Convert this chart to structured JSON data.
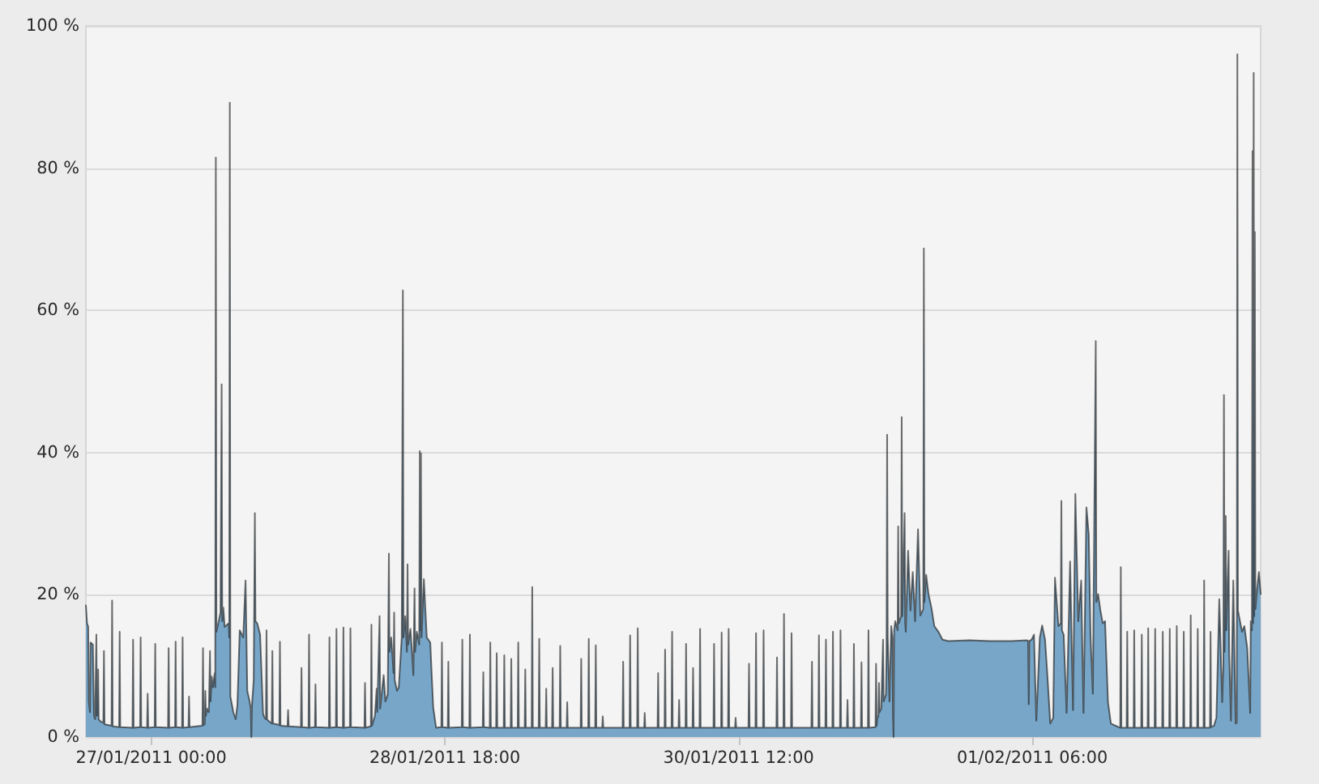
{
  "chart_data": {
    "type": "area",
    "color": "#78a6c8",
    "grid": "y",
    "xlim": [
      "2011-01-26T14:40",
      "2011-02-02T14:40"
    ],
    "xticks": [
      {
        "value": "2011-01-27T00:00",
        "label": "27/01/2011 00:00"
      },
      {
        "value": "2011-01-28T18:00",
        "label": "28/01/2011 18:00"
      },
      {
        "value": "2011-01-30T12:00",
        "label": "30/01/2011 12:00"
      },
      {
        "value": "2011-02-01T06:00",
        "label": "01/02/2011 06:00"
      }
    ],
    "ylim": [
      0,
      100
    ],
    "yticks": [
      {
        "value": 0,
        "label": "0 %"
      },
      {
        "value": 20,
        "label": "20 %"
      },
      {
        "value": 40,
        "label": "40 %"
      },
      {
        "value": 60,
        "label": "60 %"
      },
      {
        "value": 80,
        "label": "80 %"
      },
      {
        "value": 100,
        "label": "100 %"
      }
    ],
    "x": [
      "2011-01-26T14:40",
      "2011-01-26T14:50",
      "2011-01-26T15:00",
      "2011-01-26T15:05",
      "2011-01-26T15:15",
      "2011-01-26T15:20",
      "2011-01-26T15:40",
      "2011-01-26T15:50",
      "2011-01-26T16:00",
      "2011-01-26T16:10",
      "2011-01-26T16:15",
      "2011-01-26T16:25",
      "2011-01-26T16:30",
      "2011-01-26T16:45",
      "2011-01-26T17:10",
      "2011-01-26T17:15",
      "2011-01-26T17:20",
      "2011-01-26T18:20",
      "2011-01-26T18:25",
      "2011-01-26T18:30",
      "2011-01-26T19:25",
      "2011-01-26T19:30",
      "2011-01-26T19:35",
      "2011-01-26T21:20",
      "2011-01-26T21:25",
      "2011-01-26T21:30",
      "2011-01-26T22:25",
      "2011-01-26T22:30",
      "2011-01-26T22:35",
      "2011-01-26T23:25",
      "2011-01-26T23:30",
      "2011-01-26T23:35",
      "2011-01-27T00:30",
      "2011-01-27T00:35",
      "2011-01-27T00:40",
      "2011-01-27T02:25",
      "2011-01-27T02:30",
      "2011-01-27T02:35",
      "2011-01-27T03:25",
      "2011-01-27T03:30",
      "2011-01-27T03:35",
      "2011-01-27T04:25",
      "2011-01-27T04:30",
      "2011-01-27T04:35",
      "2011-01-27T05:20",
      "2011-01-27T05:25",
      "2011-01-27T05:30",
      "2011-01-27T07:20",
      "2011-01-27T07:25",
      "2011-01-27T07:30",
      "2011-01-27T07:40",
      "2011-01-27T07:45",
      "2011-01-27T07:50",
      "2011-01-27T08:00",
      "2011-01-27T08:15",
      "2011-01-27T08:25",
      "2011-01-27T08:30",
      "2011-01-27T08:40",
      "2011-01-27T08:50",
      "2011-01-27T09:05",
      "2011-01-27T09:10",
      "2011-01-27T09:15",
      "2011-01-27T09:20",
      "2011-01-27T09:40",
      "2011-01-27T09:55",
      "2011-01-27T10:05",
      "2011-01-27T10:10",
      "2011-01-27T10:20",
      "2011-01-27T10:30",
      "2011-01-27T11:05",
      "2011-01-27T11:10",
      "2011-01-27T11:15",
      "2011-01-27T11:20",
      "2011-01-27T11:45",
      "2011-01-27T12:05",
      "2011-01-27T12:20",
      "2011-01-27T12:40",
      "2011-01-27T13:10",
      "2011-01-27T13:30",
      "2011-01-27T13:45",
      "2011-01-27T14:05",
      "2011-01-27T14:15",
      "2011-01-27T14:20",
      "2011-01-27T14:25",
      "2011-01-27T14:40",
      "2011-01-27T14:50",
      "2011-01-27T14:55",
      "2011-01-27T15:10",
      "2011-01-27T15:35",
      "2011-01-27T16:00",
      "2011-01-27T16:10",
      "2011-01-27T16:25",
      "2011-01-27T16:30",
      "2011-01-27T16:35",
      "2011-01-27T16:45",
      "2011-01-27T17:15",
      "2011-01-27T17:20",
      "2011-01-27T17:25",
      "2011-01-27T18:20",
      "2011-01-27T18:25",
      "2011-01-27T18:30",
      "2011-01-27T19:30",
      "2011-01-27T19:35",
      "2011-01-27T19:40",
      "2011-01-27T21:25",
      "2011-01-27T21:30",
      "2011-01-27T21:35",
      "2011-01-27T22:30",
      "2011-01-27T22:35",
      "2011-01-27T22:40",
      "2011-01-27T23:25",
      "2011-01-27T23:30",
      "2011-01-27T23:35",
      "2011-01-28T01:25",
      "2011-01-28T01:30",
      "2011-01-28T01:35",
      "2011-01-28T02:25",
      "2011-01-28T02:30",
      "2011-01-28T02:35",
      "2011-01-28T03:25",
      "2011-01-28T03:30",
      "2011-01-28T03:35",
      "2011-01-28T04:25",
      "2011-01-28T04:30",
      "2011-01-28T04:35",
      "2011-01-28T06:30",
      "2011-01-28T06:35",
      "2011-01-28T06:40",
      "2011-01-28T07:25",
      "2011-01-28T07:30",
      "2011-01-28T07:35",
      "2011-01-28T08:00",
      "2011-01-28T08:15",
      "2011-01-28T08:20",
      "2011-01-28T08:40",
      "2011-01-28T08:45",
      "2011-01-28T09:15",
      "2011-01-28T09:30",
      "2011-01-28T09:50",
      "2011-01-28T10:00",
      "2011-01-28T10:05",
      "2011-01-28T10:20",
      "2011-01-28T10:40",
      "2011-01-28T10:45",
      "2011-01-28T10:50",
      "2011-01-28T11:10",
      "2011-01-28T11:25",
      "2011-01-28T11:50",
      "2011-01-28T12:00",
      "2011-01-28T12:05",
      "2011-01-28T12:20",
      "2011-01-28T12:35",
      "2011-01-28T12:40",
      "2011-01-28T12:45",
      "2011-01-28T13:05",
      "2011-01-28T13:30",
      "2011-01-28T13:40",
      "2011-01-28T13:45",
      "2011-01-28T14:00",
      "2011-01-28T14:20",
      "2011-01-28T14:25",
      "2011-01-28T14:30",
      "2011-01-28T14:35",
      "2011-01-28T14:40",
      "2011-01-28T15:00",
      "2011-01-28T15:25",
      "2011-01-28T15:55",
      "2011-01-28T16:20",
      "2011-01-28T16:45",
      "2011-01-28T17:30",
      "2011-01-28T17:35",
      "2011-01-28T17:40",
      "2011-01-28T18:25",
      "2011-01-28T18:30",
      "2011-01-28T18:35",
      "2011-01-28T20:25",
      "2011-01-28T20:30",
      "2011-01-28T20:35",
      "2011-01-28T21:30",
      "2011-01-28T21:35",
      "2011-01-28T21:40",
      "2011-01-28T23:25",
      "2011-01-28T23:30",
      "2011-01-28T23:35",
      "2011-01-29T00:25",
      "2011-01-29T00:30",
      "2011-01-29T00:35",
      "2011-01-29T01:20",
      "2011-01-29T01:25",
      "2011-01-29T01:30",
      "2011-01-29T02:25",
      "2011-01-29T02:30",
      "2011-01-29T02:35",
      "2011-01-29T03:25",
      "2011-01-29T03:30",
      "2011-01-29T03:35",
      "2011-01-29T04:25",
      "2011-01-29T04:30",
      "2011-01-29T04:35",
      "2011-01-29T05:25",
      "2011-01-29T05:30",
      "2011-01-29T05:35",
      "2011-01-29T06:25",
      "2011-01-29T06:30",
      "2011-01-29T06:35",
      "2011-01-29T07:25",
      "2011-01-29T07:30",
      "2011-01-29T07:35",
      "2011-01-29T08:25",
      "2011-01-29T08:30",
      "2011-01-29T08:35",
      "2011-01-29T09:20",
      "2011-01-29T09:25",
      "2011-01-29T09:30",
      "2011-01-29T10:25",
      "2011-01-29T10:30",
      "2011-01-29T10:35",
      "2011-01-29T11:25",
      "2011-01-29T11:30",
      "2011-01-29T11:35",
      "2011-01-29T13:25",
      "2011-01-29T13:30",
      "2011-01-29T13:35",
      "2011-01-29T14:30",
      "2011-01-29T14:35",
      "2011-01-29T14:40",
      "2011-01-29T15:30",
      "2011-01-29T15:35",
      "2011-01-29T15:40",
      "2011-01-29T16:30",
      "2011-01-29T16:35",
      "2011-01-29T16:40",
      "2011-01-29T19:25",
      "2011-01-29T19:30",
      "2011-01-29T19:35",
      "2011-01-29T20:25",
      "2011-01-29T20:30",
      "2011-01-29T20:35",
      "2011-01-29T21:30",
      "2011-01-29T21:35",
      "2011-01-29T21:40",
      "2011-01-29T22:30",
      "2011-01-29T22:35",
      "2011-01-29T22:40",
      "2011-01-30T00:25",
      "2011-01-30T00:30",
      "2011-01-30T00:35",
      "2011-01-30T01:25",
      "2011-01-30T01:30",
      "2011-01-30T01:35",
      "2011-01-30T02:25",
      "2011-01-30T02:30",
      "2011-01-30T02:35",
      "2011-01-30T03:25",
      "2011-01-30T03:30",
      "2011-01-30T03:35",
      "2011-01-30T04:25",
      "2011-01-30T04:30",
      "2011-01-30T04:35",
      "2011-01-30T05:25",
      "2011-01-30T05:30",
      "2011-01-30T05:35",
      "2011-01-30T06:25",
      "2011-01-30T06:30",
      "2011-01-30T06:35",
      "2011-01-30T08:25",
      "2011-01-30T08:30",
      "2011-01-30T08:35",
      "2011-01-30T09:30",
      "2011-01-30T09:35",
      "2011-01-30T09:40",
      "2011-01-30T10:30",
      "2011-01-30T10:35",
      "2011-01-30T10:40",
      "2011-01-30T11:30",
      "2011-01-30T11:35",
      "2011-01-30T11:40",
      "2011-01-30T13:25",
      "2011-01-30T13:30",
      "2011-01-30T13:35",
      "2011-01-30T14:25",
      "2011-01-30T14:30",
      "2011-01-30T14:35",
      "2011-01-30T15:30",
      "2011-01-30T15:35",
      "2011-01-30T15:40",
      "2011-01-30T17:25",
      "2011-01-30T17:30",
      "2011-01-30T17:35",
      "2011-01-30T18:25",
      "2011-01-30T18:30",
      "2011-01-30T18:35",
      "2011-01-30T19:30",
      "2011-01-30T19:35",
      "2011-01-30T19:40",
      "2011-01-30T22:25",
      "2011-01-30T22:30",
      "2011-01-30T22:35",
      "2011-01-30T23:25",
      "2011-01-30T23:30",
      "2011-01-30T23:35",
      "2011-01-31T00:25",
      "2011-01-31T00:30",
      "2011-01-31T00:35",
      "2011-01-31T01:25",
      "2011-01-31T01:30",
      "2011-01-31T01:35",
      "2011-01-31T02:30",
      "2011-01-31T02:35",
      "2011-01-31T02:40",
      "2011-01-31T03:30",
      "2011-01-31T03:35",
      "2011-01-31T03:40",
      "2011-01-31T04:25",
      "2011-01-31T04:30",
      "2011-01-31T04:35",
      "2011-01-31T05:30",
      "2011-01-31T05:35",
      "2011-01-31T05:40",
      "2011-01-31T06:30",
      "2011-01-31T06:35",
      "2011-01-31T06:40",
      "2011-01-31T07:35",
      "2011-01-31T07:40",
      "2011-01-31T07:45",
      "2011-01-31T07:50",
      "2011-01-31T08:00",
      "2011-01-31T08:05",
      "2011-01-31T08:10",
      "2011-01-31T08:25",
      "2011-01-31T08:40",
      "2011-01-31T08:45",
      "2011-01-31T09:05",
      "2011-01-31T09:10",
      "2011-01-31T09:15",
      "2011-01-31T09:20",
      "2011-01-31T09:35",
      "2011-01-31T09:50",
      "2011-01-31T10:00",
      "2011-01-31T10:05",
      "2011-01-31T10:10",
      "2011-01-31T10:15",
      "2011-01-31T10:25",
      "2011-01-31T10:45",
      "2011-01-31T10:50",
      "2011-01-31T10:55",
      "2011-01-31T11:15",
      "2011-01-31T11:20",
      "2011-01-31T11:25",
      "2011-01-31T11:45",
      "2011-01-31T11:50",
      "2011-01-31T11:55",
      "2011-01-31T12:15",
      "2011-01-31T12:35",
      "2011-01-31T12:55",
      "2011-01-31T13:15",
      "2011-01-31T13:40",
      "2011-01-31T14:00",
      "2011-01-31T14:25",
      "2011-01-31T14:30",
      "2011-01-31T14:35",
      "2011-01-31T14:50",
      "2011-01-31T15:10",
      "2011-01-31T15:35",
      "2011-01-31T16:00",
      "2011-01-31T16:35",
      "2011-01-31T17:10",
      "2011-01-31T18:00",
      "2011-01-31T21:00",
      "2011-02-01T00:00",
      "2011-02-01T03:00",
      "2011-02-01T05:15",
      "2011-02-01T05:25",
      "2011-02-01T05:30",
      "2011-02-01T05:35",
      "2011-02-01T05:55",
      "2011-02-01T06:15",
      "2011-02-01T06:35",
      "2011-02-01T07:05",
      "2011-02-01T07:25",
      "2011-02-01T07:50",
      "2011-02-01T08:10",
      "2011-02-01T08:35",
      "2011-02-01T09:00",
      "2011-02-01T09:15",
      "2011-02-01T09:45",
      "2011-02-01T10:05",
      "2011-02-01T10:10",
      "2011-02-01T10:15",
      "2011-02-01T10:30",
      "2011-02-01T10:55",
      "2011-02-01T11:25",
      "2011-02-01T11:50",
      "2011-02-01T12:10",
      "2011-02-01T12:35",
      "2011-02-01T13:00",
      "2011-02-01T13:20",
      "2011-02-01T13:45",
      "2011-02-01T14:05",
      "2011-02-01T14:20",
      "2011-02-01T14:40",
      "2011-02-01T15:05",
      "2011-02-01T15:10",
      "2011-02-01T15:25",
      "2011-02-01T15:45",
      "2011-02-01T16:05",
      "2011-02-01T16:25",
      "2011-02-01T16:50",
      "2011-02-01T17:15",
      "2011-02-01T18:35",
      "2011-02-01T18:40",
      "2011-02-01T18:45",
      "2011-02-01T19:30",
      "2011-02-01T19:35",
      "2011-02-01T19:40",
      "2011-02-01T20:30",
      "2011-02-01T20:35",
      "2011-02-01T20:40",
      "2011-02-01T21:35",
      "2011-02-01T21:40",
      "2011-02-01T21:45",
      "2011-02-01T22:30",
      "2011-02-01T22:35",
      "2011-02-01T22:40",
      "2011-02-01T23:30",
      "2011-02-01T23:35",
      "2011-02-01T23:40",
      "2011-02-02T00:35",
      "2011-02-02T00:40",
      "2011-02-02T00:45",
      "2011-02-02T01:35",
      "2011-02-02T01:40",
      "2011-02-02T01:45",
      "2011-02-02T02:35",
      "2011-02-02T02:40",
      "2011-02-02T02:45",
      "2011-02-02T03:35",
      "2011-02-02T03:40",
      "2011-02-02T03:45",
      "2011-02-02T04:35",
      "2011-02-02T04:40",
      "2011-02-02T04:45",
      "2011-02-02T05:35",
      "2011-02-02T05:40",
      "2011-02-02T05:45",
      "2011-02-02T06:30",
      "2011-02-02T06:35",
      "2011-02-02T06:40",
      "2011-02-02T07:25",
      "2011-02-02T07:30",
      "2011-02-02T07:35",
      "2011-02-02T08:00",
      "2011-02-02T08:20",
      "2011-02-02T08:45",
      "2011-02-02T09:10",
      "2011-02-02T09:20",
      "2011-02-02T09:25",
      "2011-02-02T09:30",
      "2011-02-02T09:40",
      "2011-02-02T09:45",
      "2011-02-02T10:05",
      "2011-02-02T10:10",
      "2011-02-02T10:25",
      "2011-02-02T10:45",
      "2011-02-02T11:05",
      "2011-02-02T11:15",
      "2011-02-02T11:20",
      "2011-02-02T11:25",
      "2011-02-02T12:00",
      "2011-02-02T12:20",
      "2011-02-02T12:45",
      "2011-02-02T13:10",
      "2011-02-02T13:15",
      "2011-02-02T13:25",
      "2011-02-02T13:30",
      "2011-02-02T13:35",
      "2011-02-02T13:40",
      "2011-02-02T13:45",
      "2011-02-02T13:50",
      "2011-02-02T13:55",
      "2011-02-02T14:10",
      "2011-02-02T14:25",
      "2011-02-02T14:40"
    ],
    "values": [
      18.5,
      16,
      15.5,
      5,
      3.5,
      13.3,
      13,
      3,
      2.5,
      14.4,
      3,
      9.5,
      2.5,
      2.2,
      2,
      12.1,
      1.8,
      1.6,
      19.2,
      1.5,
      1.4,
      14.8,
      1.4,
      1.3,
      13.7,
      1.3,
      1.4,
      14,
      1.4,
      1.3,
      6.1,
      1.3,
      1.4,
      13.1,
      1.4,
      1.3,
      12.5,
      1.3,
      1.4,
      13.4,
      1.4,
      1.3,
      14,
      1.3,
      1.4,
      5.7,
      1.4,
      1.6,
      12.5,
      1.7,
      1.8,
      6.5,
      3,
      4,
      3.5,
      12.1,
      5,
      8.5,
      7,
      9,
      7,
      81.5,
      14.8,
      16.3,
      17.5,
      49.6,
      16.3,
      18.2,
      15.5,
      16,
      14,
      89.2,
      5.7,
      3.5,
      2.5,
      4.5,
      15,
      14,
      22,
      6.5,
      5,
      4,
      0,
      4.5,
      8,
      31.5,
      16.3,
      16,
      14.4,
      3.4,
      2.8,
      2.5,
      15,
      2.5,
      2.3,
      1.9,
      12.1,
      1.9,
      1.7,
      13.4,
      1.6,
      1.5,
      3.8,
      1.5,
      1.4,
      9.7,
      1.4,
      1.3,
      14.4,
      1.3,
      1.4,
      7.4,
      1.4,
      1.3,
      14,
      1.3,
      1.4,
      15.2,
      1.4,
      1.3,
      15.4,
      1.3,
      1.4,
      15.3,
      1.4,
      1.3,
      7.6,
      1.3,
      1.5,
      15.8,
      1.6,
      3,
      6.8,
      3.5,
      17,
      4,
      8.7,
      5,
      6,
      25.8,
      12,
      14,
      9,
      17.5,
      8,
      6.5,
      7,
      14,
      62.8,
      14,
      17,
      12,
      24.3,
      13,
      15.2,
      8.7,
      20.9,
      12,
      14.8,
      13,
      40.2,
      15,
      39.9,
      14,
      22.2,
      14,
      13.3,
      4.2,
      1.3,
      1.4,
      13.3,
      1.4,
      1.3,
      10.6,
      1.3,
      1.4,
      13.7,
      1.4,
      1.3,
      14.4,
      1.3,
      1.4,
      9.1,
      1.4,
      1.3,
      13.3,
      1.3,
      1.3,
      11.8,
      1.3,
      1.3,
      11.5,
      1.3,
      1.3,
      11,
      1.3,
      1.3,
      13.3,
      1.3,
      1.3,
      9.5,
      1.3,
      1.3,
      21.1,
      1.3,
      1.3,
      13.8,
      1.3,
      1.3,
      6.8,
      1.3,
      1.3,
      9.7,
      1.3,
      1.3,
      12.8,
      1.3,
      1.3,
      4.9,
      1.3,
      1.3,
      11,
      1.3,
      1.3,
      13.8,
      1.3,
      1.3,
      12.9,
      1.3,
      1.3,
      2.9,
      1.3,
      1.3,
      10.6,
      1.3,
      1.3,
      14.3,
      1.3,
      1.3,
      15.3,
      1.3,
      1.3,
      3.4,
      1.3,
      1.3,
      9,
      1.3,
      1.3,
      12.3,
      1.3,
      1.3,
      14.8,
      1.3,
      1.3,
      5.2,
      1.3,
      1.3,
      13.1,
      1.3,
      1.3,
      9.7,
      1.3,
      1.3,
      15.2,
      1.3,
      1.3,
      13.1,
      1.3,
      1.3,
      14.7,
      1.3,
      1.3,
      15.2,
      1.3,
      1.3,
      2.7,
      1.3,
      1.3,
      10.3,
      1.3,
      1.3,
      14.6,
      1.3,
      1.3,
      15,
      1.3,
      1.3,
      11.2,
      1.3,
      1.3,
      17.3,
      1.3,
      1.3,
      14.6,
      1.3,
      1.3,
      10.6,
      1.3,
      1.3,
      14.3,
      1.3,
      1.3,
      13.7,
      1.3,
      1.3,
      14.8,
      1.3,
      1.3,
      15,
      1.3,
      1.3,
      5.2,
      1.3,
      1.3,
      13.1,
      1.3,
      1.3,
      10.5,
      1.3,
      1.3,
      15,
      1.3,
      1.4,
      10.3,
      1.6,
      2.5,
      3,
      7.6,
      3.5,
      4,
      13.7,
      5,
      6,
      12,
      42.5,
      14,
      5,
      15.6,
      14,
      3,
      0,
      15,
      16.3,
      15,
      29.6,
      16,
      17,
      45,
      17,
      31.5,
      16,
      14.8,
      26.2,
      17.8,
      23.2,
      16.3,
      29.2,
      17.1,
      18,
      68.7,
      19,
      22.8,
      20.1,
      18.2,
      15.6,
      14.8,
      13.7,
      13.5,
      13.6,
      13.5,
      13.5,
      13.6,
      13.5,
      4.6,
      13.5,
      13.7,
      14.4,
      2.3,
      14,
      15.7,
      13.7,
      8.7,
      1.9,
      2.7,
      22.4,
      15.6,
      16,
      33.2,
      15,
      14.4,
      3.4,
      24.7,
      3.8,
      34.2,
      16.3,
      22,
      3.4,
      32.3,
      28.5,
      14.4,
      6.1,
      55.7,
      19,
      20.1,
      17.8,
      16,
      16.3,
      4.9,
      1.9,
      1.3,
      23.9,
      1.3,
      1.3,
      14.8,
      1.3,
      1.3,
      15,
      1.3,
      1.3,
      14.4,
      1.3,
      1.3,
      15.3,
      1.3,
      1.3,
      15.2,
      1.3,
      1.3,
      14.8,
      1.3,
      1.3,
      15.2,
      1.3,
      1.3,
      15.6,
      1.3,
      1.3,
      14.8,
      1.3,
      1.3,
      17.1,
      1.3,
      1.3,
      15.2,
      1.3,
      1.3,
      22,
      1.3,
      1.3,
      14.8,
      1.4,
      1.6,
      2.7,
      19.4,
      4.9,
      10,
      48.1,
      12,
      31.1,
      15,
      26.2,
      12,
      2.3,
      22,
      1.9,
      2,
      96,
      17.8,
      14.8,
      15.6,
      12.5,
      3.4,
      16.3,
      15,
      82.4,
      16,
      93.4,
      17,
      71,
      18,
      20.9,
      23.2,
      20.1
    ]
  }
}
